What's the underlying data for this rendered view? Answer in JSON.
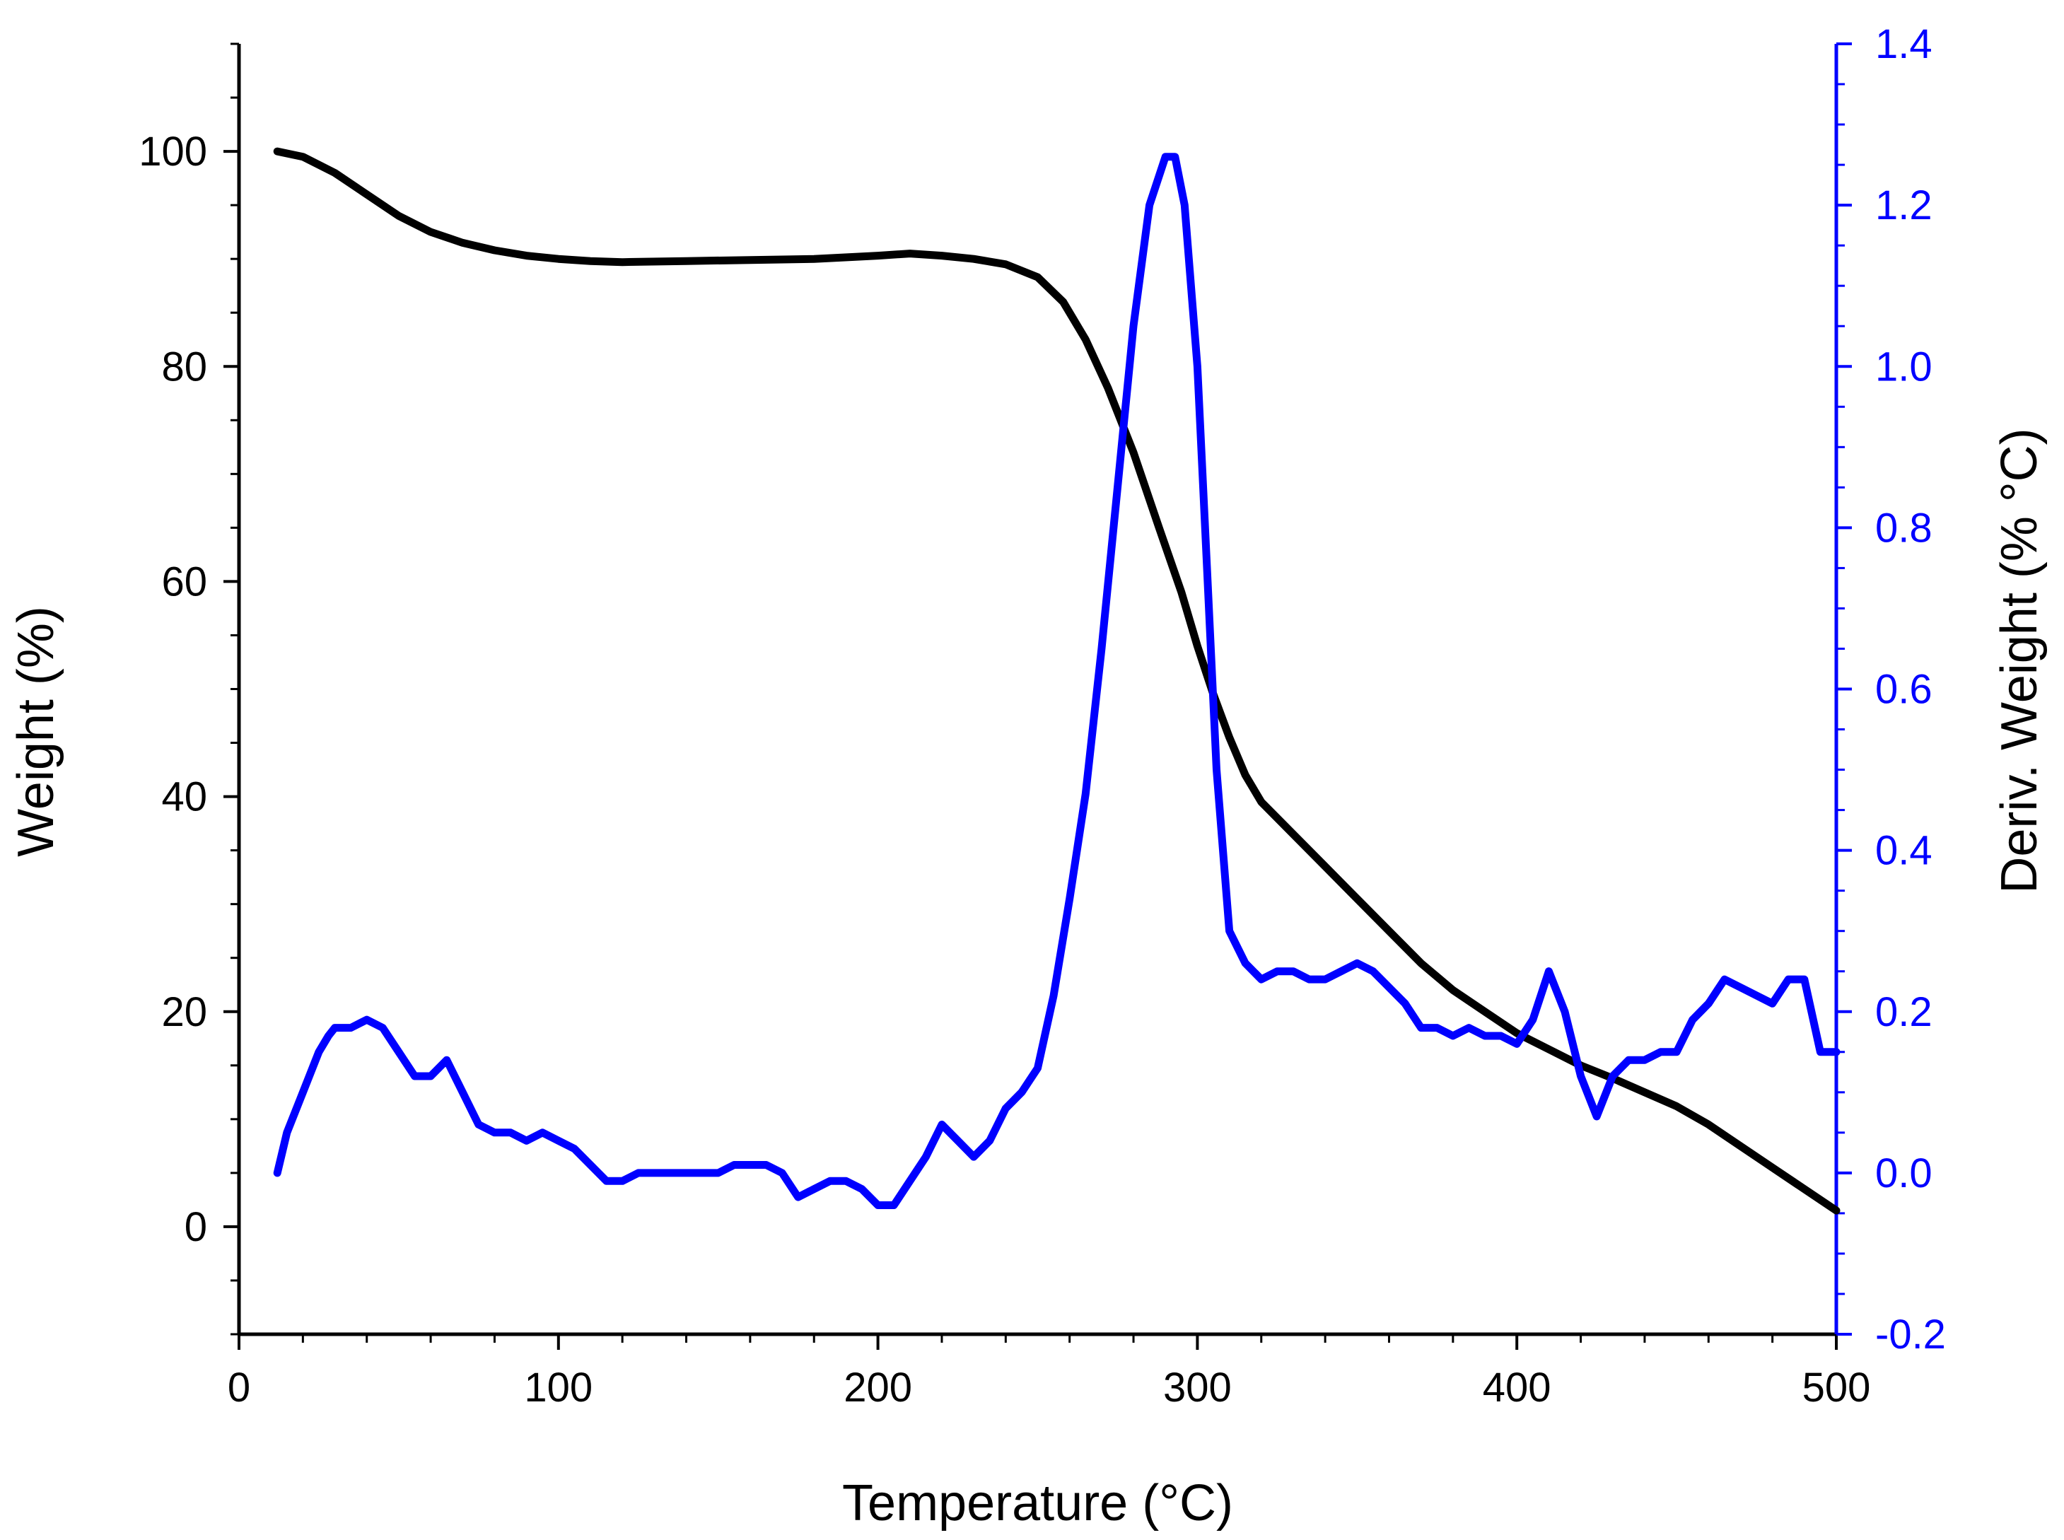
{
  "chart_data": {
    "type": "line",
    "title": "",
    "xlabel": "Temperature (°C)",
    "ylabel_left": "Weight (%)",
    "ylabel_right": "Deriv. Weight (% °C)",
    "xlim": [
      0,
      500
    ],
    "ylim_left": [
      -10,
      110
    ],
    "ylim_right": [
      -0.2,
      1.4
    ],
    "x_ticks": [
      "0",
      "100",
      "200",
      "300",
      "400",
      "500"
    ],
    "y_left_ticks": [
      "0",
      "20",
      "40",
      "60",
      "80",
      "100"
    ],
    "y_right_ticks": [
      "-0.2",
      "0.0",
      "0.2",
      "0.4",
      "0.6",
      "0.8",
      "1.0",
      "1.2",
      "1.4"
    ],
    "colors": {
      "weight": "#000000",
      "deriv": "#0000ff",
      "axis": "#000000",
      "right_axis": "#0000ff"
    },
    "series": [
      {
        "name": "Weight",
        "axis": "left",
        "x": [
          12,
          20,
          30,
          40,
          50,
          60,
          70,
          80,
          90,
          100,
          110,
          120,
          140,
          160,
          180,
          200,
          210,
          220,
          230,
          240,
          250,
          258,
          265,
          272,
          280,
          288,
          295,
          300,
          305,
          310,
          315,
          320,
          330,
          340,
          350,
          360,
          370,
          380,
          390,
          400,
          410,
          420,
          430,
          440,
          450,
          460,
          470,
          480,
          490,
          500
        ],
        "y": [
          100,
          99.5,
          98,
          96,
          94,
          92.5,
          91.5,
          90.8,
          90.3,
          90,
          89.8,
          89.7,
          89.8,
          89.9,
          90,
          90.3,
          90.5,
          90.3,
          90,
          89.5,
          88.3,
          86,
          82.5,
          78,
          72,
          65,
          59,
          54,
          49.5,
          45.5,
          42,
          39.5,
          36.5,
          33.5,
          30.5,
          27.5,
          24.5,
          22,
          20,
          18,
          16.5,
          15,
          13.8,
          12.5,
          11.2,
          9.5,
          7.5,
          5.5,
          3.5,
          1.5
        ]
      },
      {
        "name": "Deriv. Weight",
        "axis": "right",
        "x": [
          12,
          15,
          20,
          25,
          28,
          30,
          35,
          40,
          45,
          50,
          55,
          60,
          65,
          70,
          75,
          80,
          85,
          90,
          95,
          100,
          105,
          110,
          115,
          120,
          125,
          130,
          135,
          140,
          145,
          150,
          155,
          160,
          165,
          170,
          175,
          180,
          185,
          190,
          195,
          200,
          205,
          210,
          215,
          220,
          225,
          230,
          235,
          240,
          245,
          250,
          255,
          260,
          265,
          270,
          275,
          280,
          285,
          290,
          293,
          296,
          300,
          303,
          306,
          310,
          315,
          320,
          325,
          330,
          335,
          340,
          345,
          350,
          355,
          360,
          365,
          370,
          375,
          380,
          385,
          390,
          395,
          400,
          405,
          410,
          415,
          420,
          425,
          430,
          435,
          440,
          445,
          450,
          455,
          460,
          465,
          470,
          475,
          480,
          485,
          490,
          495,
          500
        ],
        "y": [
          0.0,
          0.05,
          0.1,
          0.15,
          0.17,
          0.18,
          0.18,
          0.19,
          0.18,
          0.15,
          0.12,
          0.12,
          0.14,
          0.1,
          0.06,
          0.05,
          0.05,
          0.04,
          0.05,
          0.04,
          0.03,
          0.01,
          -0.01,
          -0.01,
          0.0,
          0.0,
          0.0,
          0.0,
          0.0,
          0.0,
          0.01,
          0.01,
          0.01,
          0.0,
          -0.03,
          -0.02,
          -0.01,
          -0.01,
          -0.02,
          -0.04,
          -0.04,
          -0.01,
          0.02,
          0.06,
          0.04,
          0.02,
          0.04,
          0.08,
          0.1,
          0.13,
          0.22,
          0.34,
          0.47,
          0.65,
          0.85,
          1.05,
          1.2,
          1.26,
          1.26,
          1.2,
          1.0,
          0.75,
          0.5,
          0.3,
          0.26,
          0.24,
          0.25,
          0.25,
          0.24,
          0.24,
          0.25,
          0.26,
          0.25,
          0.23,
          0.21,
          0.18,
          0.18,
          0.17,
          0.18,
          0.17,
          0.17,
          0.16,
          0.19,
          0.25,
          0.2,
          0.12,
          0.07,
          0.12,
          0.14,
          0.14,
          0.15,
          0.15,
          0.19,
          0.21,
          0.24,
          0.23,
          0.22,
          0.21,
          0.24,
          0.24,
          0.15,
          0.15
        ]
      }
    ]
  }
}
